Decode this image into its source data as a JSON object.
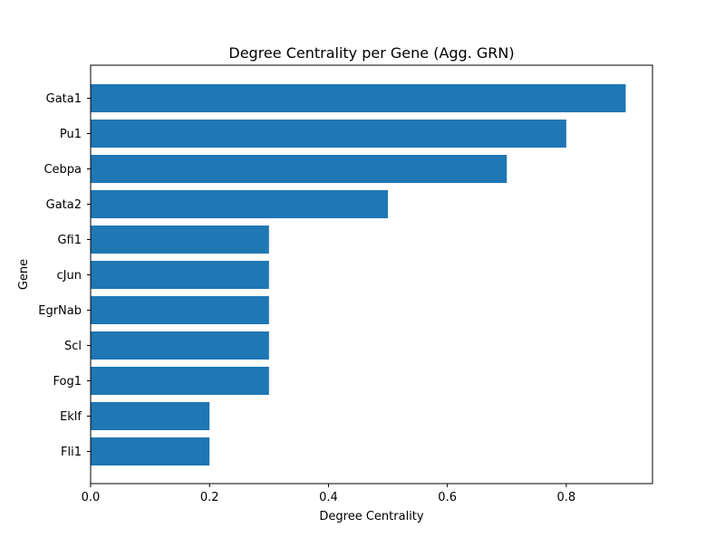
{
  "chart_data": {
    "type": "bar",
    "orientation": "horizontal",
    "title": "Degree Centrality per Gene (Agg. GRN)",
    "xlabel": "Degree Centrality",
    "ylabel": "Gene",
    "categories": [
      "Gata1",
      "Pu1",
      "Cebpa",
      "Gata2",
      "Gfi1",
      "cJun",
      "EgrNab",
      "Scl",
      "Fog1",
      "Eklf",
      "Fli1"
    ],
    "values": [
      0.9,
      0.8,
      0.7,
      0.5,
      0.3,
      0.3,
      0.3,
      0.3,
      0.3,
      0.2,
      0.2
    ],
    "xlim": [
      0,
      0.945
    ],
    "xticks": [
      0.0,
      0.2,
      0.4,
      0.6,
      0.8
    ],
    "xtick_labels": [
      "0.0",
      "0.2",
      "0.4",
      "0.6",
      "0.8"
    ],
    "grid": false,
    "bar_color": "#1f77b4"
  }
}
